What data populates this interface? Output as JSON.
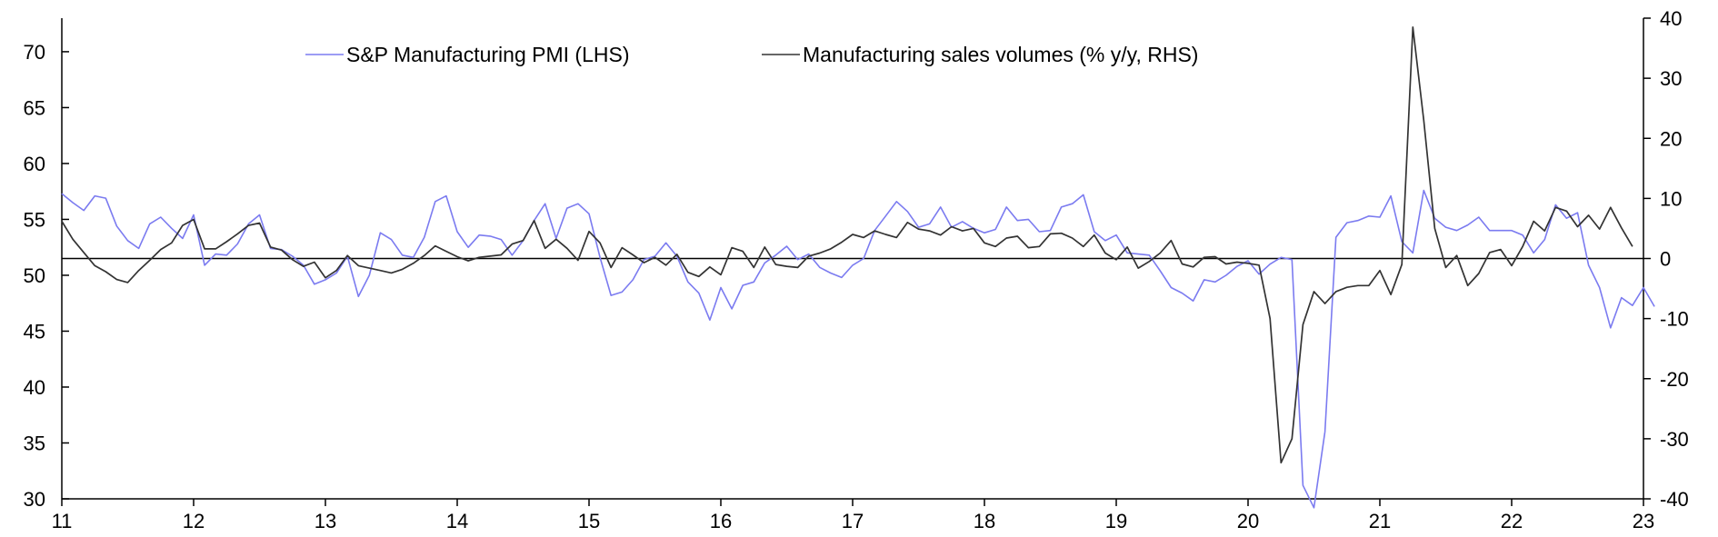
{
  "chart_data": {
    "type": "line",
    "title": "",
    "xlabel": "",
    "x_tick_labels": [
      "11",
      "12",
      "13",
      "14",
      "15",
      "16",
      "17",
      "18",
      "19",
      "20",
      "21",
      "22",
      "23"
    ],
    "x_range": [
      2011.0,
      2023.0
    ],
    "left_axis": {
      "label": "",
      "ylim": [
        30,
        73
      ],
      "ticks": [
        30,
        35,
        40,
        45,
        50,
        55,
        60,
        65,
        70
      ]
    },
    "right_axis": {
      "label": "",
      "ylim": [
        -40,
        40
      ],
      "ticks": [
        -40,
        -30,
        -20,
        -10,
        0,
        10,
        20,
        30,
        40
      ]
    },
    "zero_line": {
      "axis": "right",
      "value": 0
    },
    "legend": {
      "placement": "top-center"
    },
    "series": [
      {
        "name": "S&P Manufacturing PMI (LHS)",
        "axis": "left",
        "color": "#7b7bf0",
        "start": 2011.0,
        "step_months": 1,
        "values": [
          57.3,
          56.5,
          55.8,
          57.1,
          56.9,
          54.4,
          53.1,
          52.4,
          54.6,
          55.2,
          54.2,
          53.3,
          55.4,
          50.9,
          51.9,
          51.8,
          52.8,
          54.6,
          55.4,
          52.4,
          52.3,
          51.7,
          50.9,
          49.2,
          49.6,
          50.2,
          51.7,
          48.1,
          50.0,
          53.8,
          53.2,
          51.8,
          51.6,
          53.4,
          56.6,
          57.1,
          53.9,
          52.5,
          53.6,
          53.5,
          53.2,
          51.8,
          53.1,
          54.9,
          56.4,
          53.3,
          56.0,
          56.4,
          55.5,
          51.6,
          48.2,
          48.5,
          49.6,
          51.4,
          51.7,
          52.9,
          51.7,
          49.4,
          48.4,
          46.0,
          48.9,
          47.0,
          49.1,
          49.4,
          51.1,
          51.8,
          52.6,
          51.4,
          51.9,
          50.7,
          50.2,
          49.8,
          50.9,
          51.5,
          54.0,
          55.3,
          56.6,
          55.7,
          54.3,
          54.6,
          56.1,
          54.3,
          54.8,
          54.2,
          53.8,
          54.1,
          56.1,
          54.9,
          55.0,
          53.9,
          54.0,
          56.1,
          56.4,
          57.2,
          53.9,
          53.1,
          53.6,
          52.0,
          51.9,
          51.8,
          50.4,
          48.9,
          48.4,
          47.7,
          49.6,
          49.4,
          50.0,
          50.8,
          51.3,
          50.1,
          51.0,
          51.6,
          51.4,
          31.2,
          29.2,
          36.0,
          53.4,
          54.7,
          54.9,
          55.3,
          55.2,
          57.1,
          53.0,
          52.0,
          57.6,
          55.1,
          54.3,
          54.0,
          54.5,
          55.2,
          54.0,
          54.0,
          54.0,
          53.6,
          52.0,
          53.2,
          56.3,
          55.1,
          55.6,
          50.9,
          48.9,
          45.3,
          48.0,
          47.3,
          48.9,
          47.2
        ]
      },
      {
        "name": "Manufacturing sales volumes (% y/y, RHS)",
        "axis": "right",
        "color": "#333333",
        "start": 2011.0,
        "step_months": 1,
        "values": [
          6.2,
          3.2,
          1.0,
          -1.2,
          -2.2,
          -3.5,
          -4.0,
          -2.0,
          -0.3,
          1.5,
          2.6,
          5.5,
          6.5,
          1.6,
          1.6,
          2.8,
          4.1,
          5.5,
          5.9,
          1.9,
          1.4,
          -0.2,
          -1.3,
          -0.6,
          -3.2,
          -2.0,
          0.5,
          -1.2,
          -1.6,
          -2.0,
          -2.4,
          -1.8,
          -0.8,
          0.5,
          2.1,
          1.2,
          0.3,
          -0.4,
          0.2,
          0.4,
          0.6,
          2.4,
          3.0,
          6.3,
          1.7,
          3.2,
          1.7,
          -0.3,
          4.5,
          2.6,
          -1.5,
          1.8,
          0.6,
          -0.7,
          0.2,
          -1.1,
          0.7,
          -2.3,
          -3.0,
          -1.4,
          -2.7,
          1.8,
          1.2,
          -1.5,
          1.9,
          -1.0,
          -1.3,
          -1.5,
          0.4,
          0.9,
          1.6,
          2.7,
          4.0,
          3.5,
          4.6,
          4.0,
          3.5,
          6.0,
          4.9,
          4.6,
          3.9,
          5.3,
          4.6,
          5.0,
          2.6,
          2.0,
          3.4,
          3.7,
          1.8,
          2.0,
          4.1,
          4.2,
          3.4,
          2.0,
          3.9,
          0.9,
          -0.2,
          1.9,
          -1.6,
          -0.5,
          0.9,
          3.0,
          -0.9,
          -1.4,
          0.2,
          0.3,
          -0.9,
          -0.6,
          -0.8,
          -1.1,
          -10.0,
          -34.0,
          -30.0,
          -11.0,
          -5.5,
          -7.5,
          -5.5,
          -4.8,
          -4.5,
          -4.5,
          -2.0,
          -6.0,
          -1.0,
          38.5,
          23.0,
          5.0,
          -1.5,
          0.5,
          -4.5,
          -2.5,
          1.0,
          1.5,
          -1.2,
          2.0,
          6.2,
          4.6,
          8.5,
          7.9,
          5.3,
          7.2,
          4.9,
          8.5,
          5.1,
          2.0
        ]
      }
    ]
  }
}
